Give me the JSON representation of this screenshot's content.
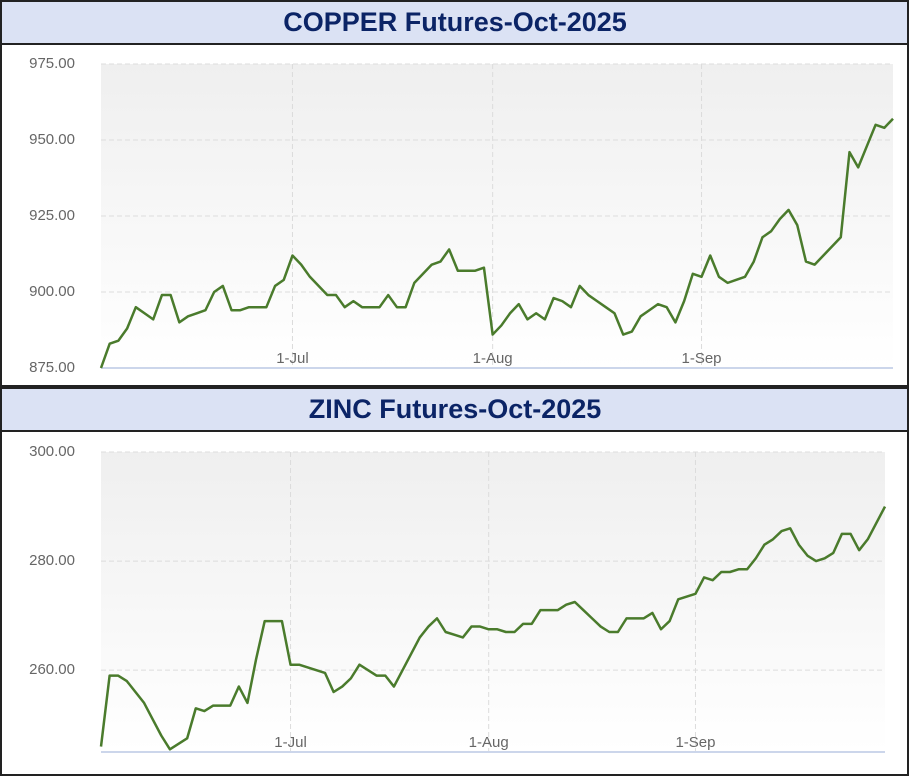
{
  "chart_data": [
    {
      "type": "line",
      "title": "COPPER Futures-Oct-2025",
      "color": "#4a7b2c",
      "grid": true,
      "categories": [
        null,
        null,
        null,
        null,
        null,
        null,
        null,
        null,
        null,
        null,
        null,
        null,
        null,
        null,
        null,
        null,
        null,
        null,
        null,
        null,
        null,
        null,
        "1-Jul",
        null,
        null,
        null,
        null,
        null,
        null,
        null,
        null,
        null,
        null,
        null,
        null,
        null,
        null,
        null,
        null,
        null,
        null,
        null,
        null,
        null,
        null,
        "1-Aug",
        null,
        null,
        null,
        null,
        null,
        null,
        null,
        null,
        null,
        null,
        null,
        null,
        null,
        null,
        null,
        null,
        null,
        null,
        null,
        null,
        null,
        null,
        null,
        "1-Sep",
        null,
        null,
        null,
        null,
        null,
        null,
        null,
        null,
        null,
        null,
        null,
        null,
        null,
        null,
        null,
        null,
        null,
        null,
        null,
        null,
        null,
        null
      ],
      "values": [
        875,
        883,
        884,
        888,
        895,
        893,
        891,
        899,
        899,
        890,
        892,
        893,
        894,
        900,
        902,
        894,
        894,
        895,
        895,
        895,
        902,
        904,
        912,
        909,
        905,
        902,
        899,
        899,
        895,
        897,
        895,
        895,
        895,
        899,
        895,
        895,
        903,
        906,
        909,
        910,
        914,
        907,
        907,
        907,
        908,
        886,
        889,
        893,
        896,
        891,
        893,
        891,
        898,
        897,
        895,
        902,
        899,
        897,
        895,
        893,
        886,
        887,
        892,
        894,
        896,
        895,
        890,
        897,
        906,
        905,
        912,
        905,
        903,
        904,
        905,
        910,
        918,
        920,
        924,
        927,
        922,
        910,
        909,
        912,
        915,
        918,
        946,
        941,
        948,
        955,
        954,
        957
      ],
      "ylim": [
        875,
        975
      ],
      "yticks": [
        {
          "value": 875,
          "label": "875.00"
        },
        {
          "value": 900,
          "label": "900.00"
        },
        {
          "value": 925,
          "label": "925.00"
        },
        {
          "value": 950,
          "label": "950.00"
        },
        {
          "value": 975,
          "label": "975.00"
        }
      ]
    },
    {
      "type": "line",
      "title": "ZINC Futures-Oct-2025",
      "color": "#4a7b2c",
      "grid": true,
      "categories": [
        null,
        null,
        null,
        null,
        null,
        null,
        null,
        null,
        null,
        null,
        null,
        null,
        null,
        null,
        null,
        null,
        null,
        null,
        null,
        null,
        null,
        null,
        "1-Jul",
        null,
        null,
        null,
        null,
        null,
        null,
        null,
        null,
        null,
        null,
        null,
        null,
        null,
        null,
        null,
        null,
        null,
        null,
        null,
        null,
        null,
        null,
        "1-Aug",
        null,
        null,
        null,
        null,
        null,
        null,
        null,
        null,
        null,
        null,
        null,
        null,
        null,
        null,
        null,
        null,
        null,
        null,
        null,
        null,
        null,
        null,
        null,
        "1-Sep",
        null,
        null,
        null,
        null,
        null,
        null,
        null,
        null,
        null,
        null,
        null,
        null,
        null,
        null,
        null,
        null,
        null,
        null,
        null,
        null,
        null,
        null
      ],
      "values": [
        246,
        259,
        259,
        258,
        256,
        254,
        251,
        248,
        245.5,
        246.5,
        247.5,
        253,
        252.5,
        253.5,
        253.5,
        253.5,
        257,
        254,
        262,
        269,
        269,
        269,
        261,
        261,
        260.5,
        260,
        259.5,
        256,
        257,
        258.5,
        261,
        260,
        259,
        259,
        257,
        260,
        263,
        266,
        268,
        269.5,
        267,
        266.5,
        266,
        268,
        268,
        267.5,
        267.5,
        267,
        267,
        268.5,
        268.5,
        271,
        271,
        271,
        272,
        272.5,
        271,
        269.5,
        268,
        267,
        267,
        269.5,
        269.5,
        269.5,
        270.5,
        267.5,
        269,
        273,
        273.5,
        274,
        277,
        276.5,
        278,
        278,
        278.5,
        278.5,
        280.5,
        283,
        284,
        285.5,
        286,
        283,
        281,
        280,
        280.5,
        281.5,
        285,
        285,
        282,
        284,
        287,
        290
      ],
      "ylim": [
        245,
        300
      ],
      "yticks": [
        {
          "value": 260,
          "label": "260.00"
        },
        {
          "value": 280,
          "label": "280.00"
        },
        {
          "value": 300,
          "label": "300.00"
        }
      ]
    }
  ]
}
